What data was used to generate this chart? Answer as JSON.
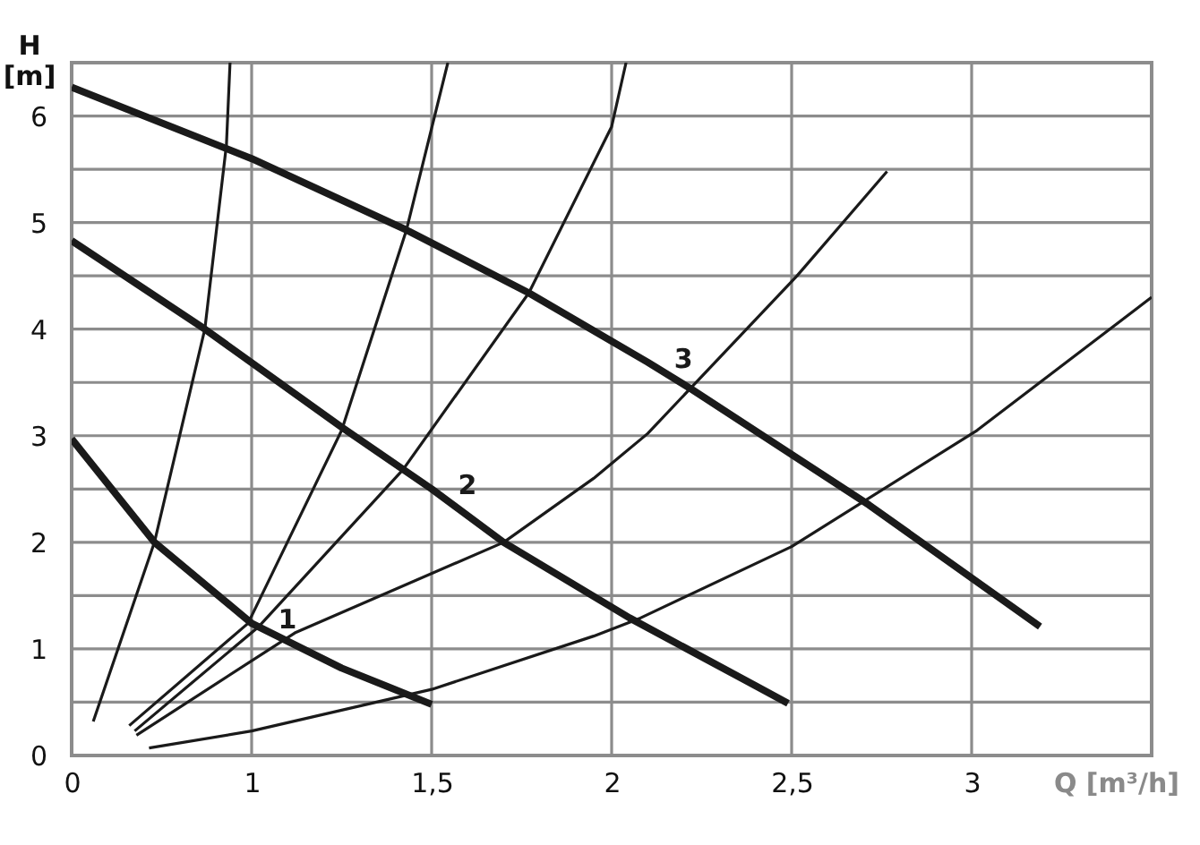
{
  "chart_data": {
    "type": "line",
    "xlabel": "Q [m³/h]",
    "ylabel": "H [m]",
    "xlim": [
      0.5,
      3.5
    ],
    "ylim": [
      0,
      6.5
    ],
    "xticks": [
      {
        "value": 0.5,
        "label": "0"
      },
      1,
      {
        "value": 1.5,
        "label": "1,5"
      },
      2,
      {
        "value": 2.5,
        "label": "2,5"
      },
      3
    ],
    "yticks": [
      0,
      {
        "value": 0.5,
        "label": null
      },
      1,
      {
        "value": 1.5,
        "label": null
      },
      2,
      {
        "value": 2.5,
        "label": null
      },
      3,
      {
        "value": 3.5,
        "label": null
      },
      4,
      {
        "value": 4.5,
        "label": null
      },
      5,
      {
        "value": 5.5,
        "label": null
      },
      6
    ],
    "grid": true,
    "series": [
      {
        "name": "1",
        "color": "#1a1a1a",
        "x": [
          0.5,
          0.73,
          1.0,
          1.25,
          1.5
        ],
        "values": [
          2.97,
          2.0,
          1.24,
          0.82,
          0.48
        ]
      },
      {
        "name": "2",
        "color": "#1a1a1a",
        "x": [
          0.5,
          0.87,
          1.25,
          1.5,
          1.7,
          2.05,
          2.49
        ],
        "values": [
          4.83,
          4.0,
          3.08,
          2.5,
          2.0,
          1.29,
          0.49
        ]
      },
      {
        "name": "3",
        "color": "#1a1a1a",
        "x": [
          0.5,
          1.0,
          1.43,
          1.77,
          2.1,
          2.225,
          2.715,
          3.19
        ],
        "values": [
          6.27,
          5.6,
          4.93,
          4.34,
          3.69,
          3.43,
          2.35,
          1.21
        ]
      },
      {
        "color": "#1a1a1a",
        "x": [
          0.56,
          0.73,
          0.87,
          0.93,
          0.94
        ],
        "values": [
          0.32,
          2.0,
          4.0,
          5.73,
          6.5
        ]
      },
      {
        "color": "#1a1a1a",
        "x": [
          0.66,
          0.99,
          1.25,
          1.43,
          1.545
        ],
        "values": [
          0.28,
          1.24,
          3.05,
          4.93,
          6.5
        ]
      },
      {
        "color": "#1a1a1a",
        "x": [
          0.675,
          1.02,
          1.42,
          1.77,
          2.0,
          2.04
        ],
        "values": [
          0.23,
          1.21,
          2.68,
          4.34,
          5.9,
          6.5
        ]
      },
      {
        "color": "#1a1a1a",
        "x": [
          0.68,
          1.12,
          1.7,
          1.95,
          2.1,
          2.515,
          2.765
        ],
        "values": [
          0.19,
          1.15,
          2.0,
          2.6,
          3.02,
          4.5,
          5.48
        ]
      },
      {
        "color": "#1a1a1a",
        "x": [
          0.715,
          1.0,
          1.5,
          1.95,
          2.08,
          2.5,
          3.015,
          3.5
        ],
        "values": [
          0.07,
          0.23,
          0.62,
          1.12,
          1.29,
          1.96,
          3.05,
          4.3
        ]
      }
    ]
  }
}
